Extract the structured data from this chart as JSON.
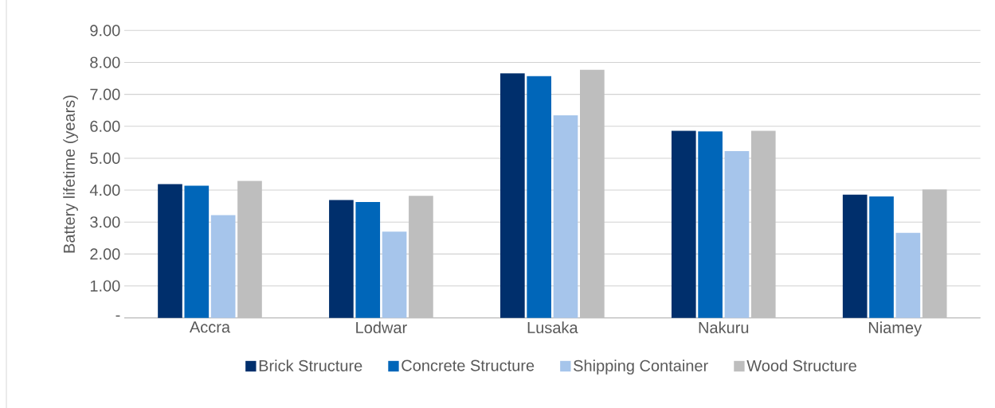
{
  "chart_data": {
    "type": "bar",
    "ylabel": "Battery lifetime (years)",
    "categories": [
      "Accra",
      "Lodwar",
      "Lusaka",
      "Nakuru",
      "Niamey"
    ],
    "series": [
      {
        "name": "Brick Structure",
        "color": "#002f6c",
        "values": [
          4.19,
          3.69,
          7.66,
          5.86,
          3.86
        ]
      },
      {
        "name": "Concrete Structure",
        "color": "#0066b9",
        "values": [
          4.14,
          3.63,
          7.57,
          5.84,
          3.8
        ]
      },
      {
        "name": "Shipping Container",
        "color": "#a6c5eb",
        "values": [
          3.22,
          2.7,
          6.34,
          5.22,
          2.66
        ]
      },
      {
        "name": "Wood Structure",
        "color": "#bebebe",
        "values": [
          4.29,
          3.82,
          7.77,
          5.86,
          4.02
        ]
      }
    ],
    "ylim": [
      0,
      9
    ],
    "yticks": [
      {
        "value": 0,
        "label": "-"
      },
      {
        "value": 1,
        "label": "1.00"
      },
      {
        "value": 2,
        "label": "2.00"
      },
      {
        "value": 3,
        "label": "3.00"
      },
      {
        "value": 4,
        "label": "4.00"
      },
      {
        "value": 5,
        "label": "5.00"
      },
      {
        "value": 6,
        "label": "6.00"
      },
      {
        "value": 7,
        "label": "7.00"
      },
      {
        "value": 8,
        "label": "8.00"
      },
      {
        "value": 9,
        "label": "9.00"
      }
    ],
    "grid": "y",
    "legend": "bottom"
  }
}
